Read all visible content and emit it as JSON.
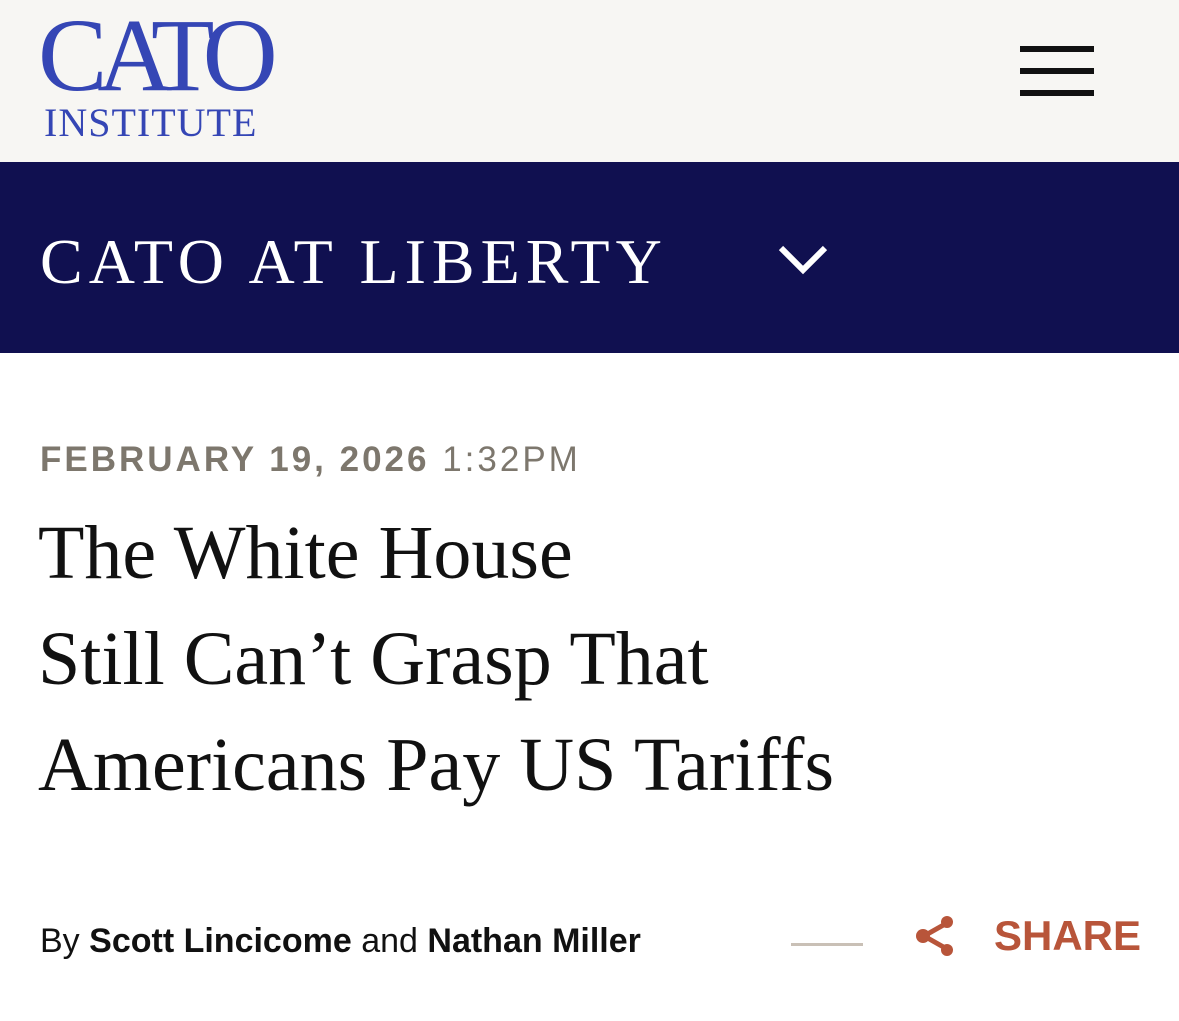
{
  "header": {
    "logo_main": "CATO",
    "logo_sub": "INSTITUTE",
    "menu_icon": "hamburger-menu-icon"
  },
  "nav": {
    "title": "CATO AT LIBERTY",
    "dropdown_icon": "chevron-down-icon",
    "bg_color": "#101050"
  },
  "article": {
    "date": "FEBRUARY 19, 2026",
    "time": "1:32PM",
    "title_lines": [
      "The White House",
      "Still Can’t Grasp That",
      "Americans Pay US Tariffs"
    ],
    "byline": {
      "by": "By",
      "author1": "Scott Lincicome",
      "and": "and",
      "author2": "Nathan Miller"
    },
    "share": {
      "label": "SHARE",
      "icon": "share-icon",
      "color": "#b8553a"
    }
  }
}
